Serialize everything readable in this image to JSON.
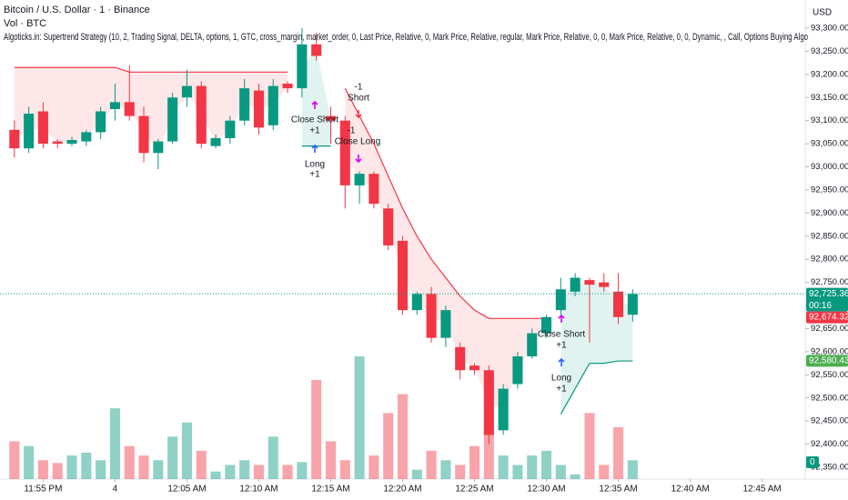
{
  "chart_data": {
    "type": "candlestick",
    "title": "Bitcoin / U.S. Dollar · 1 · Binance",
    "subtitle": "Vol · BTC",
    "indicator": "Algoticks.in: Supertrend Strategy (10, 2, Trading Signal, DELTA, options, 1, GTC, cross_margin, market_order, 0, Last Price, Relative, 0, Mark Price, Relative, regular, Mark Price, Relative, 0, 0, Mark Price, Relative, 0, 0, Dynamic, , Call, Options Buying Algo",
    "currency": "USD",
    "up_color": "#089981",
    "down_color": "#f23645",
    "x": [
      -7,
      -6,
      -5,
      -4,
      -3,
      -2,
      -1,
      0,
      1,
      2,
      3,
      4,
      5,
      6,
      7,
      8,
      9,
      10,
      11,
      12,
      13,
      14,
      15,
      16,
      17,
      18,
      19,
      20,
      21,
      22,
      23,
      24,
      25,
      26,
      27,
      28,
      29,
      30,
      31,
      32,
      33,
      34,
      35,
      36
    ],
    "open": [
      93080,
      93040,
      93120,
      93055,
      93050,
      93055,
      93075,
      93125,
      93140,
      93110,
      93030,
      93055,
      93150,
      93175,
      93045,
      93062,
      93100,
      93165,
      93090,
      93180,
      93170,
      93265,
      93110,
      93100,
      92960,
      92985,
      92910,
      92840,
      92690,
      92725,
      92630,
      92610,
      92570,
      92560,
      92430,
      92530,
      92590,
      92640,
      92690,
      92730,
      92755,
      92750,
      92730,
      92680
    ],
    "high": [
      93100,
      93130,
      93140,
      93060,
      93065,
      93080,
      93130,
      93180,
      93220,
      93130,
      93060,
      93160,
      93210,
      93185,
      93070,
      93110,
      93190,
      93180,
      93190,
      93185,
      93300,
      93290,
      93130,
      93110,
      92990,
      92990,
      92920,
      92850,
      92730,
      92740,
      92700,
      92620,
      92575,
      92570,
      92530,
      92600,
      92650,
      92680,
      92760,
      92770,
      92760,
      92770,
      92770,
      92735
    ],
    "low": [
      93020,
      93030,
      93040,
      93040,
      93045,
      93045,
      93060,
      93100,
      93100,
      93010,
      92995,
      93050,
      93130,
      93040,
      93040,
      93050,
      93090,
      93070,
      93080,
      93160,
      93150,
      93230,
      93050,
      92910,
      92920,
      92910,
      92820,
      92680,
      92680,
      92620,
      92610,
      92540,
      92550,
      92400,
      92420,
      92520,
      92585,
      92630,
      92680,
      92720,
      92620,
      92730,
      92660,
      92665
    ],
    "close": [
      93040,
      93115,
      93050,
      93050,
      93058,
      93075,
      93120,
      93140,
      93110,
      93030,
      93055,
      93150,
      93175,
      93050,
      93062,
      93100,
      93170,
      93085,
      93175,
      93170,
      93265,
      93240,
      93100,
      92960,
      92985,
      92920,
      92830,
      92690,
      92725,
      92630,
      92690,
      92560,
      92560,
      92420,
      92520,
      92590,
      92640,
      92675,
      92735,
      92760,
      92745,
      92740,
      92675,
      92725
    ],
    "volume": [
      40,
      35,
      20,
      17,
      25,
      28,
      20,
      75,
      35,
      25,
      20,
      45,
      60,
      30,
      8,
      15,
      20,
      15,
      45,
      15,
      18,
      105,
      40,
      20,
      130,
      25,
      70,
      90,
      10,
      30,
      20,
      15,
      35,
      60,
      25,
      15,
      25,
      30,
      15,
      5,
      70,
      15,
      55,
      20
    ],
    "series": [
      {
        "name": "Supertrend Up",
        "color": "#089981",
        "values": [
          null,
          null,
          null,
          null,
          null,
          null,
          null,
          null,
          null,
          null,
          null,
          null,
          null,
          null,
          null,
          null,
          null,
          null,
          null,
          null,
          93045,
          93045,
          93045,
          null,
          null,
          null,
          null,
          null,
          null,
          null,
          null,
          null,
          null,
          null,
          null,
          null,
          null,
          null,
          92465,
          92520,
          92575,
          92575,
          92580,
          92580
        ]
      },
      {
        "name": "Supertrend Down",
        "color": "#f23645",
        "values": [
          93215,
          93215,
          93215,
          93215,
          93215,
          93215,
          93215,
          93215,
          93205,
          93205,
          93205,
          93205,
          93205,
          93205,
          93205,
          93205,
          93205,
          93205,
          93205,
          93205,
          null,
          null,
          null,
          93170,
          93110,
          93050,
          92980,
          92910,
          92850,
          92800,
          92760,
          92720,
          92690,
          92672,
          92672,
          92672,
          92672,
          92672,
          null,
          null,
          null,
          null,
          null,
          null
        ]
      }
    ],
    "annotations": [
      "-1",
      "Short",
      "Close Short",
      "+1",
      "Long",
      "+1",
      "-1",
      "Close Long",
      "Close Short",
      "+1",
      "Long",
      "+1"
    ],
    "xlim": [
      -8,
      48
    ],
    "xticks": [
      {
        "value": -5,
        "label": "11:55 PM"
      },
      {
        "value": 0,
        "label": "4"
      },
      {
        "value": 5,
        "label": "12:05 AM"
      },
      {
        "value": 10,
        "label": "12:10 AM"
      },
      {
        "value": 15,
        "label": "12:15 AM"
      },
      {
        "value": 20,
        "label": "12:20 AM"
      },
      {
        "value": 25,
        "label": "12:25 AM"
      },
      {
        "value": 30,
        "label": "12:30 AM"
      },
      {
        "value": 35,
        "label": "12:35 AM"
      },
      {
        "value": 40,
        "label": "12:40 AM"
      },
      {
        "value": 45,
        "label": "12:45 AM"
      }
    ],
    "ylim": [
      92330,
      93330
    ],
    "yticks": [
      {
        "value": 93300,
        "label": "93,300.00"
      },
      {
        "value": 93250,
        "label": "93,250.00"
      },
      {
        "value": 93200,
        "label": "93,200.00"
      },
      {
        "value": 93150,
        "label": "93,150.00"
      },
      {
        "value": 93100,
        "label": "93,100.00"
      },
      {
        "value": 93050,
        "label": "93,050.00"
      },
      {
        "value": 93000,
        "label": "93,000.00"
      },
      {
        "value": 92950,
        "label": "92,950.00"
      },
      {
        "value": 92900,
        "label": "92,900.00"
      },
      {
        "value": 92850,
        "label": "92,850.00"
      },
      {
        "value": 92800,
        "label": "92,800.00"
      },
      {
        "value": 92750,
        "label": "92,750.00"
      },
      {
        "value": 92700,
        "label": "92,700.00"
      },
      {
        "value": 92650,
        "label": "92,650.00"
      },
      {
        "value": 92600,
        "label": "92,600.00"
      },
      {
        "value": 92550,
        "label": "92,550.00"
      },
      {
        "value": 92500,
        "label": "92,500.00"
      },
      {
        "value": 92450,
        "label": "92,450.00"
      },
      {
        "value": 92400,
        "label": "92,400.00"
      },
      {
        "value": 92350,
        "label": "92,350.00"
      }
    ],
    "price_badges": [
      {
        "value": 92725.36,
        "label": "92,725.36",
        "color": "#089981"
      },
      {
        "value": 92674.32,
        "label": "92,674.32",
        "color": "#f23645"
      },
      {
        "value": 92580.43,
        "label": "92,580.43",
        "color": "#4caf50"
      }
    ],
    "countdown": "00:16",
    "volume_badge": "0"
  }
}
